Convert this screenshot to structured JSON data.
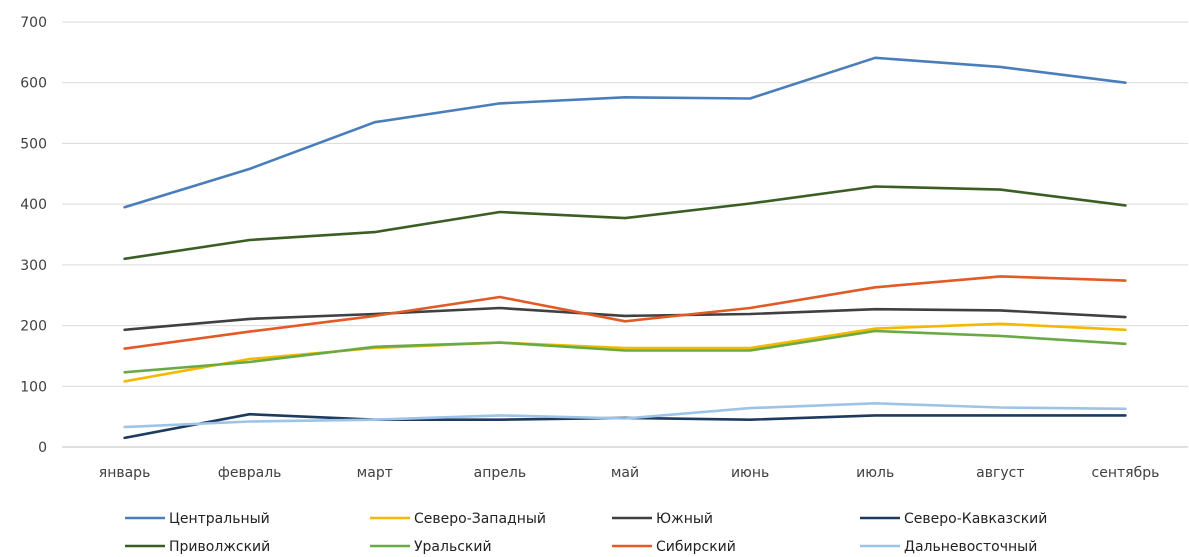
{
  "chart_data": {
    "type": "line",
    "title": "",
    "xlabel": "",
    "ylabel": "",
    "ylim": [
      0,
      700
    ],
    "yticks": [
      0,
      100,
      200,
      300,
      400,
      500,
      600,
      700
    ],
    "grid": "horizontal",
    "legend_position": "bottom",
    "categories": [
      "январь",
      "февраль",
      "март",
      "апрель",
      "май",
      "июнь",
      "июль",
      "август",
      "сентябрь"
    ],
    "series": [
      {
        "name": "Центральный",
        "color": "#4a7ebb",
        "values": [
          395,
          458,
          535,
          566,
          576,
          574,
          641,
          626,
          600
        ]
      },
      {
        "name": "Северо-Западный",
        "color": "#f5b800",
        "values": [
          108,
          145,
          163,
          172,
          163,
          163,
          195,
          203,
          193
        ]
      },
      {
        "name": "Южный",
        "color": "#404040",
        "values": [
          193,
          211,
          219,
          229,
          216,
          219,
          227,
          225,
          214
        ]
      },
      {
        "name": "Северо-Кавказский",
        "color": "#1f3a5f",
        "values": [
          15,
          54,
          45,
          45,
          48,
          45,
          52,
          52,
          52
        ]
      },
      {
        "name": "Приволжский",
        "color": "#3b5e24",
        "values": [
          310,
          341,
          354,
          387,
          377,
          401,
          429,
          424,
          398
        ]
      },
      {
        "name": "Уральский",
        "color": "#6aaa45",
        "values": [
          123,
          140,
          165,
          172,
          159,
          159,
          191,
          183,
          170
        ]
      },
      {
        "name": "Сибирский",
        "color": "#e25a26",
        "values": [
          162,
          190,
          216,
          247,
          207,
          229,
          263,
          281,
          274
        ]
      },
      {
        "name": "Дальневосточный",
        "color": "#9dc3e6",
        "values": [
          33,
          42,
          45,
          52,
          47,
          64,
          72,
          65,
          63
        ]
      }
    ]
  }
}
